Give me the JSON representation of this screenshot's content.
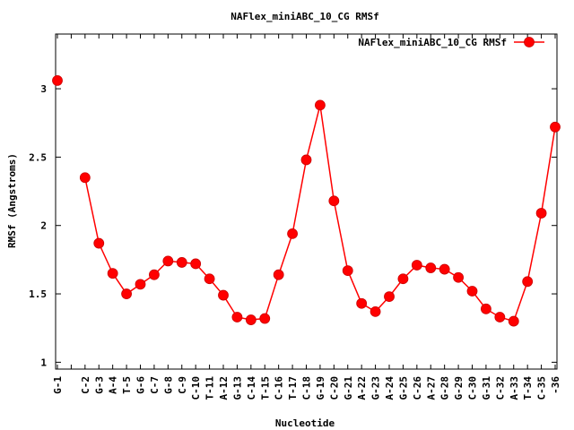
{
  "chart_data": {
    "type": "line",
    "title": "NAFlex_miniABC_10_CG RMSf",
    "xlabel": "Nucleotide",
    "ylabel": "RMSf (Angstroms)",
    "ylim": [
      0.95,
      3.4
    ],
    "yticks": [
      1,
      1.5,
      2,
      2.5,
      3
    ],
    "ytick_labels": [
      "1",
      "1.5",
      "2",
      "2.5",
      "3"
    ],
    "legend_position": "top-right",
    "grid": false,
    "categories": [
      "G-1",
      "",
      "C-2",
      "G-3",
      "A-4",
      "T-5",
      "G-6",
      "C-7",
      "G-8",
      "C-9",
      "C-10",
      "T-11",
      "A-12",
      "G-13",
      "C-14",
      "T-15",
      "C-16",
      "T-17",
      "C-18",
      "G-19",
      "C-20",
      "G-21",
      "A-22",
      "G-23",
      "A-24",
      "G-25",
      "C-26",
      "A-27",
      "G-28",
      "G-29",
      "C-30",
      "G-31",
      "C-32",
      "A-33",
      "T-34",
      "C-35",
      "-36"
    ],
    "series": [
      {
        "name": "NAFlex_miniABC_10_CG RMSf",
        "color": "#ff0000",
        "values": [
          3.06,
          null,
          2.35,
          1.87,
          1.65,
          1.5,
          1.57,
          1.64,
          1.74,
          1.73,
          1.72,
          1.61,
          1.49,
          1.33,
          1.31,
          1.32,
          1.64,
          1.94,
          2.48,
          2.88,
          2.18,
          1.67,
          1.43,
          1.37,
          1.48,
          1.61,
          1.71,
          1.69,
          1.68,
          1.62,
          1.52,
          1.39,
          1.33,
          1.3,
          1.59,
          2.09,
          2.72
        ]
      }
    ]
  }
}
